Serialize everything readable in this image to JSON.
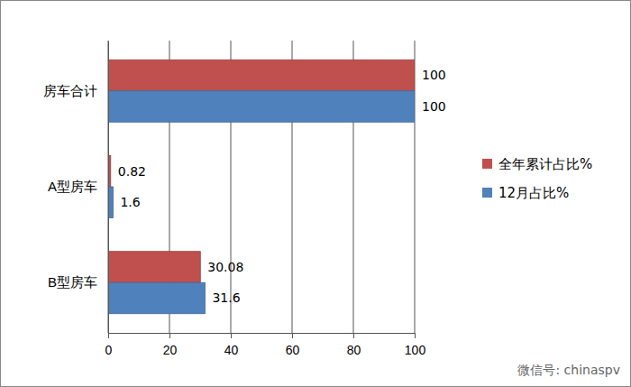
{
  "chart_data": {
    "type": "bar",
    "orientation": "horizontal",
    "categories": [
      "房车合计",
      "A型房车",
      "B型房车"
    ],
    "series": [
      {
        "name": "全年累计占比%",
        "color": "#c0504d",
        "values": [
          100,
          0.82,
          30.08
        ]
      },
      {
        "name": "12月占比%",
        "color": "#4f81bd",
        "values": [
          100,
          1.6,
          31.6
        ]
      }
    ],
    "xlim": [
      0,
      100
    ],
    "xticks": [
      0,
      20,
      40,
      60,
      80,
      100
    ],
    "grid": true,
    "legend": "right",
    "data_labels": true,
    "annotations": [
      "微信号: chinaspv"
    ]
  }
}
